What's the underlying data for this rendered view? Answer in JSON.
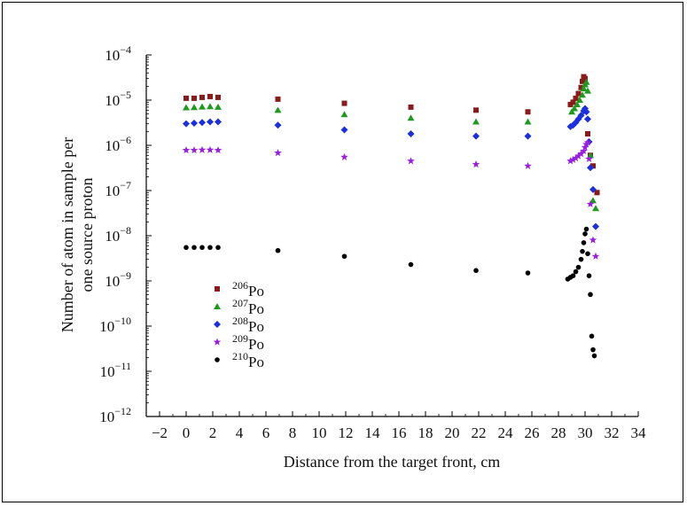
{
  "chart_data": {
    "type": "scatter",
    "xlabel": "Distance from the target front, cm",
    "ylabel_lines": [
      "Number of atom in sample per",
      "one source proton"
    ],
    "xlim": [
      -3,
      34
    ],
    "ylim_log10": [
      -12,
      -4
    ],
    "y_scale": "log",
    "x_ticks": [
      -2,
      0,
      2,
      4,
      6,
      8,
      10,
      12,
      14,
      16,
      18,
      20,
      22,
      24,
      26,
      28,
      30,
      32,
      34
    ],
    "y_ticks": [
      {
        "base": "10",
        "exp": "−4",
        "value": 0.0001
      },
      {
        "base": "10",
        "exp": "−5",
        "value": 1e-05
      },
      {
        "base": "10",
        "exp": "−6",
        "value": 1e-06
      },
      {
        "base": "10",
        "exp": "−7",
        "value": 1e-07
      },
      {
        "base": "10",
        "exp": "−8",
        "value": 1e-08
      },
      {
        "base": "10",
        "exp": "−9",
        "value": 1e-09
      },
      {
        "base": "10",
        "exp": "−10",
        "value": 1e-10
      },
      {
        "base": "10",
        "exp": "−11",
        "value": 1e-11
      },
      {
        "base": "10",
        "exp": "−12",
        "value": 1e-12
      }
    ],
    "legend_position": "lower-left",
    "series": [
      {
        "name": "206Po",
        "mass": "206",
        "element": "Po",
        "marker": "square",
        "color": "#8b1a1a",
        "x": [
          0,
          0.6,
          1.2,
          1.8,
          2.4,
          6.9,
          11.9,
          16.9,
          21.8,
          25.7,
          28.9,
          29.1,
          29.3,
          29.5,
          29.7,
          29.8,
          29.9,
          30.0,
          30.2,
          30.4,
          30.6,
          30.9
        ],
        "y": [
          1.1e-05,
          1.1e-05,
          1.15e-05,
          1.2e-05,
          1.15e-05,
          1.05e-05,
          8.5e-06,
          7e-06,
          6e-06,
          5.5e-06,
          8e-06,
          9e-06,
          1.1e-05,
          1.4e-05,
          1.9e-05,
          2.6e-05,
          3.3e-05,
          3e-05,
          1.8e-06,
          6e-07,
          3.5e-07,
          9e-08
        ]
      },
      {
        "name": "207Po",
        "mass": "207",
        "element": "Po",
        "marker": "triangle",
        "color": "#1e9a1e",
        "x": [
          0,
          0.6,
          1.2,
          1.8,
          2.4,
          6.9,
          11.9,
          16.9,
          21.8,
          25.7,
          29.0,
          29.2,
          29.4,
          29.6,
          29.8,
          29.9,
          30.0,
          30.1,
          30.2,
          30.4,
          30.6,
          30.8
        ],
        "y": [
          6.8e-06,
          6.9e-06,
          7.1e-06,
          7.2e-06,
          7e-06,
          6e-06,
          4.8e-06,
          4e-06,
          3.3e-06,
          3.3e-06,
          5.5e-06,
          6.5e-06,
          8e-06,
          1e-05,
          1.3e-05,
          1.8e-05,
          2.2e-05,
          2.5e-05,
          1.6e-05,
          6e-07,
          6e-08,
          4e-08
        ]
      },
      {
        "name": "208Po",
        "mass": "208",
        "element": "Po",
        "marker": "diamond",
        "color": "#1a2fe0",
        "x": [
          0,
          0.6,
          1.2,
          1.8,
          2.4,
          6.9,
          11.9,
          16.9,
          21.8,
          25.7,
          28.9,
          29.1,
          29.3,
          29.5,
          29.7,
          29.9,
          30.0,
          30.1,
          30.2,
          30.3,
          30.4,
          30.6,
          30.8
        ],
        "y": [
          3e-06,
          3.1e-06,
          3.2e-06,
          3.3e-06,
          3.3e-06,
          2.8e-06,
          2.2e-06,
          1.8e-06,
          1.6e-06,
          1.6e-06,
          2.6e-06,
          2.8e-06,
          3.2e-06,
          3.8e-06,
          4.6e-06,
          5.8e-06,
          6.5e-06,
          5.5e-06,
          3.8e-06,
          1.2e-06,
          3.2e-07,
          1.05e-07,
          1.6e-08
        ]
      },
      {
        "name": "209Po",
        "mass": "209",
        "element": "Po",
        "marker": "star",
        "color": "#9a1ee0",
        "x": [
          0,
          0.6,
          1.2,
          1.8,
          2.4,
          6.9,
          11.9,
          16.9,
          21.8,
          25.7,
          28.9,
          29.1,
          29.3,
          29.5,
          29.7,
          29.9,
          30.0,
          30.1,
          30.2,
          30.3,
          30.4,
          30.6,
          30.8
        ],
        "y": [
          7.8e-07,
          7.8e-07,
          7.9e-07,
          7.9e-07,
          7.8e-07,
          6.8e-07,
          5.5e-07,
          4.5e-07,
          3.8e-07,
          3.5e-07,
          4.5e-07,
          4.8e-07,
          5.2e-07,
          5.8e-07,
          6.5e-07,
          7.5e-07,
          9e-07,
          1.05e-06,
          1.15e-06,
          5e-07,
          5e-08,
          8e-09,
          3.5e-09
        ]
      },
      {
        "name": "210Po",
        "mass": "210",
        "element": "Po",
        "marker": "circle",
        "color": "#000000",
        "x": [
          0,
          0.6,
          1.2,
          1.8,
          2.4,
          6.9,
          11.9,
          16.9,
          21.8,
          25.7,
          28.7,
          28.9,
          29.1,
          29.3,
          29.5,
          29.7,
          29.8,
          29.9,
          30.0,
          30.1,
          30.2,
          30.3,
          30.4,
          30.5,
          30.6,
          30.7
        ],
        "y": [
          5.5e-09,
          5.5e-09,
          5.5e-09,
          5.5e-09,
          5.5e-09,
          4.7e-09,
          3.5e-09,
          2.3e-09,
          1.7e-09,
          1.5e-09,
          1.1e-09,
          1.2e-09,
          1.3e-09,
          1.6e-09,
          2e-09,
          3e-09,
          4.5e-09,
          7e-09,
          1.1e-08,
          1.4e-08,
          4e-09,
          1.3e-09,
          5e-10,
          6e-11,
          3e-11,
          2.2e-11
        ]
      }
    ]
  }
}
